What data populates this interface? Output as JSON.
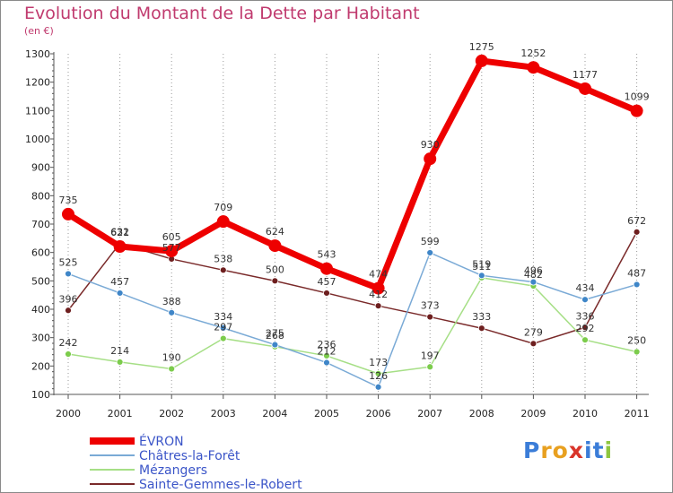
{
  "title": "Evolution du Montant de la Dette par Habitant",
  "subtitle": "(en €)",
  "logo": {
    "text": "Proxiti",
    "letters": [
      "P",
      "r",
      "o",
      "x",
      "i",
      "t",
      "i"
    ],
    "colors": [
      "#3b7dd8",
      "#e8a020",
      "#e8a020",
      "#d9352a",
      "#3b7dd8",
      "#3b7dd8",
      "#8ec63f"
    ]
  },
  "chart_data": {
    "type": "line",
    "x": [
      "2000",
      "2001",
      "2002",
      "2003",
      "2004",
      "2005",
      "2006",
      "2007",
      "2008",
      "2009",
      "2010",
      "2011"
    ],
    "ylim": [
      100,
      1300
    ],
    "yticks": [
      "100",
      "200",
      "300",
      "400",
      "500",
      "600",
      "700",
      "800",
      "900",
      "1000",
      "1100",
      "1200",
      "1300"
    ],
    "grid": "vertical dotted",
    "legend_position": "bottom-left",
    "series": [
      {
        "name": "Sainte-Gemmes-le-Robert",
        "color": "#7a2a2a",
        "marker_color": "#6e1f1f",
        "values": [
          396,
          632,
          577,
          538,
          500,
          457,
          412,
          373,
          333,
          279,
          336,
          672
        ],
        "labels": [
          "396",
          "632",
          "577",
          "538",
          "500",
          "457",
          "412",
          "373",
          "333",
          "279",
          "336",
          "672"
        ]
      },
      {
        "name": "Mézangers",
        "color": "#a6df86",
        "marker_color": "#7ccc4c",
        "values": [
          242,
          214,
          190,
          297,
          268,
          236,
          173,
          197,
          511,
          482,
          292,
          250
        ],
        "labels": [
          "242",
          "214",
          "190",
          "297",
          "268",
          "236",
          "173",
          "197",
          "511",
          "482",
          "292",
          "250"
        ]
      },
      {
        "name": "Châtres-la-Forêt",
        "color": "#7aaad6",
        "marker_color": "#3f86c8",
        "values": [
          525,
          457,
          388,
          334,
          275,
          212,
          126,
          599,
          519,
          496,
          434,
          487
        ],
        "labels": [
          "525",
          "457",
          "388",
          "334",
          "275",
          "212",
          "126",
          "599",
          "519",
          "496",
          "434",
          "487"
        ]
      },
      {
        "name": "ÉVRON",
        "color": "#ee0000",
        "marker_color": "#ee0000",
        "values": [
          735,
          621,
          605,
          709,
          624,
          543,
          474,
          930,
          1275,
          1252,
          1177,
          1099
        ],
        "labels": [
          "735",
          "621",
          "605",
          "709",
          "624",
          "543",
          "474",
          "930",
          "1275",
          "1252",
          "1177",
          "1099"
        ]
      }
    ]
  }
}
